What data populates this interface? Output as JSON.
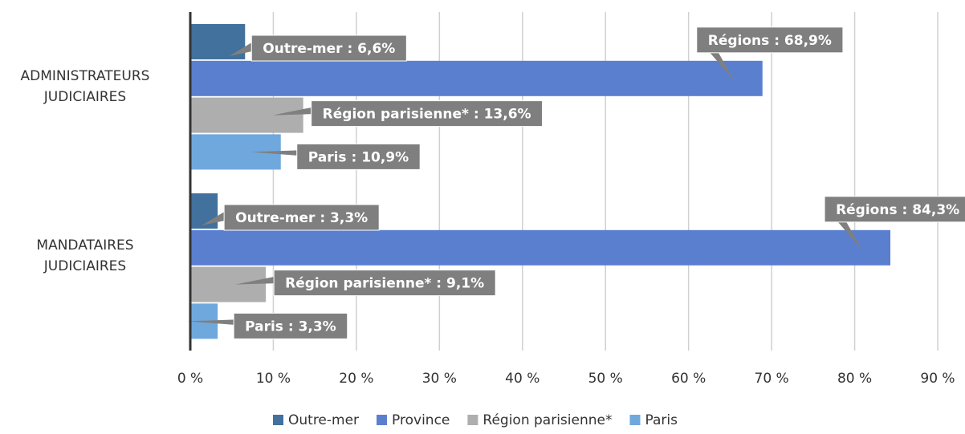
{
  "chart_data": {
    "type": "bar",
    "orientation": "horizontal",
    "categories": [
      "ADMINISTRATEURS JUDICIAIRES",
      "MANDATAIRES JUDICIAIRES"
    ],
    "series": [
      {
        "name": "Outre-mer",
        "color": "#41719c",
        "values": [
          6.6,
          3.3
        ],
        "value_labels": [
          "Outre-mer : 6,6%",
          "Outre-mer : 3,3%"
        ]
      },
      {
        "name": "Province",
        "color": "#5a7fcf",
        "values": [
          68.9,
          84.3
        ],
        "value_labels": [
          "Régions : 68,9%",
          "Régions  : 84,3%"
        ]
      },
      {
        "name": "Région parisienne*",
        "color": "#aeaeae",
        "values": [
          13.6,
          9.1
        ],
        "value_labels": [
          "Région parisienne* : 13,6%",
          "Région parisienne* : 9,1%"
        ]
      },
      {
        "name": "Paris",
        "color": "#6fa8dc",
        "values": [
          10.9,
          3.3
        ],
        "value_labels": [
          "Paris : 10,9%",
          "Paris : 3,3%"
        ]
      }
    ],
    "xlim": [
      0,
      90
    ],
    "xticks": [
      {
        "value": 0,
        "label": "0 %"
      },
      {
        "value": 10,
        "label": "10 %"
      },
      {
        "value": 20,
        "label": "20 %"
      },
      {
        "value": 30,
        "label": "30 %"
      },
      {
        "value": 40,
        "label": "40 %"
      },
      {
        "value": 50,
        "label": "50 %"
      },
      {
        "value": 60,
        "label": "60 %"
      },
      {
        "value": 70,
        "label": "70 %"
      },
      {
        "value": 80,
        "label": "80 %"
      },
      {
        "value": 90,
        "label": "90 %"
      }
    ],
    "grid": true,
    "legend": "bottom"
  }
}
